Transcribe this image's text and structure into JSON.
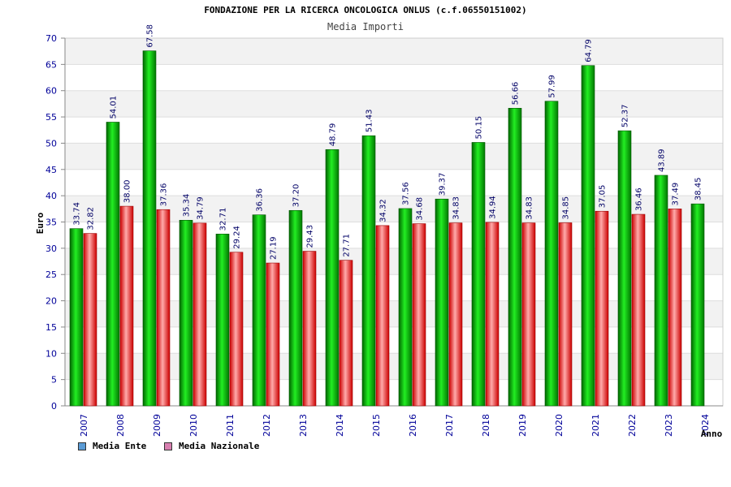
{
  "chart_data": {
    "type": "bar",
    "title": "FONDAZIONE PER LA RICERCA ONCOLOGICA ONLUS (c.f.06550151002)",
    "subtitle": "Media Importi",
    "xlabel": "Anno",
    "ylabel": "Euro",
    "ylim": [
      0,
      70
    ],
    "yticks": [
      0,
      5,
      10,
      15,
      20,
      25,
      30,
      35,
      40,
      45,
      50,
      55,
      60,
      65,
      70
    ],
    "grid": true,
    "legend_position": "bottom-left",
    "categories": [
      "2007",
      "2008",
      "2009",
      "2010",
      "2011",
      "2012",
      "2013",
      "2014",
      "2015",
      "2016",
      "2017",
      "2018",
      "2019",
      "2020",
      "2021",
      "2022",
      "2023",
      "2024"
    ],
    "series": [
      {
        "name": "Media Ente",
        "color": "#00aa00",
        "legend_color": "#5b9bd5",
        "values": [
          33.74,
          54.01,
          67.58,
          35.34,
          32.71,
          36.36,
          37.2,
          48.79,
          51.43,
          37.56,
          39.37,
          50.15,
          56.66,
          57.99,
          64.79,
          52.37,
          43.89,
          38.45
        ],
        "labels": [
          "33.74",
          "54.01",
          "67.58",
          "35.34",
          "32.71",
          "36.36",
          "37.20",
          "48.79",
          "51.43",
          "37.56",
          "39.37",
          "50.15",
          "56.66",
          "57.99",
          "64.79",
          "52.37",
          "43.89",
          "38.45"
        ]
      },
      {
        "name": "Media Nazionale",
        "color": "#dd0000",
        "legend_color": "#d87fb0",
        "values": [
          32.82,
          38.0,
          37.36,
          34.79,
          29.24,
          27.19,
          29.43,
          27.71,
          34.32,
          34.68,
          34.83,
          34.94,
          34.83,
          34.85,
          37.05,
          36.46,
          37.49,
          null
        ],
        "labels": [
          "32.82",
          "38.00",
          "37.36",
          "34.79",
          "29.24",
          "27.19",
          "29.43",
          "27.71",
          "34.32",
          "34.68",
          "34.83",
          "34.94",
          "34.83",
          "34.85",
          "37.05",
          "36.46",
          "37.49",
          null
        ]
      }
    ]
  },
  "legend": {
    "items": [
      {
        "label": "Media Ente",
        "color": "#5b9bd5"
      },
      {
        "label": "Media Nazionale",
        "color": "#d87fb0"
      }
    ]
  }
}
